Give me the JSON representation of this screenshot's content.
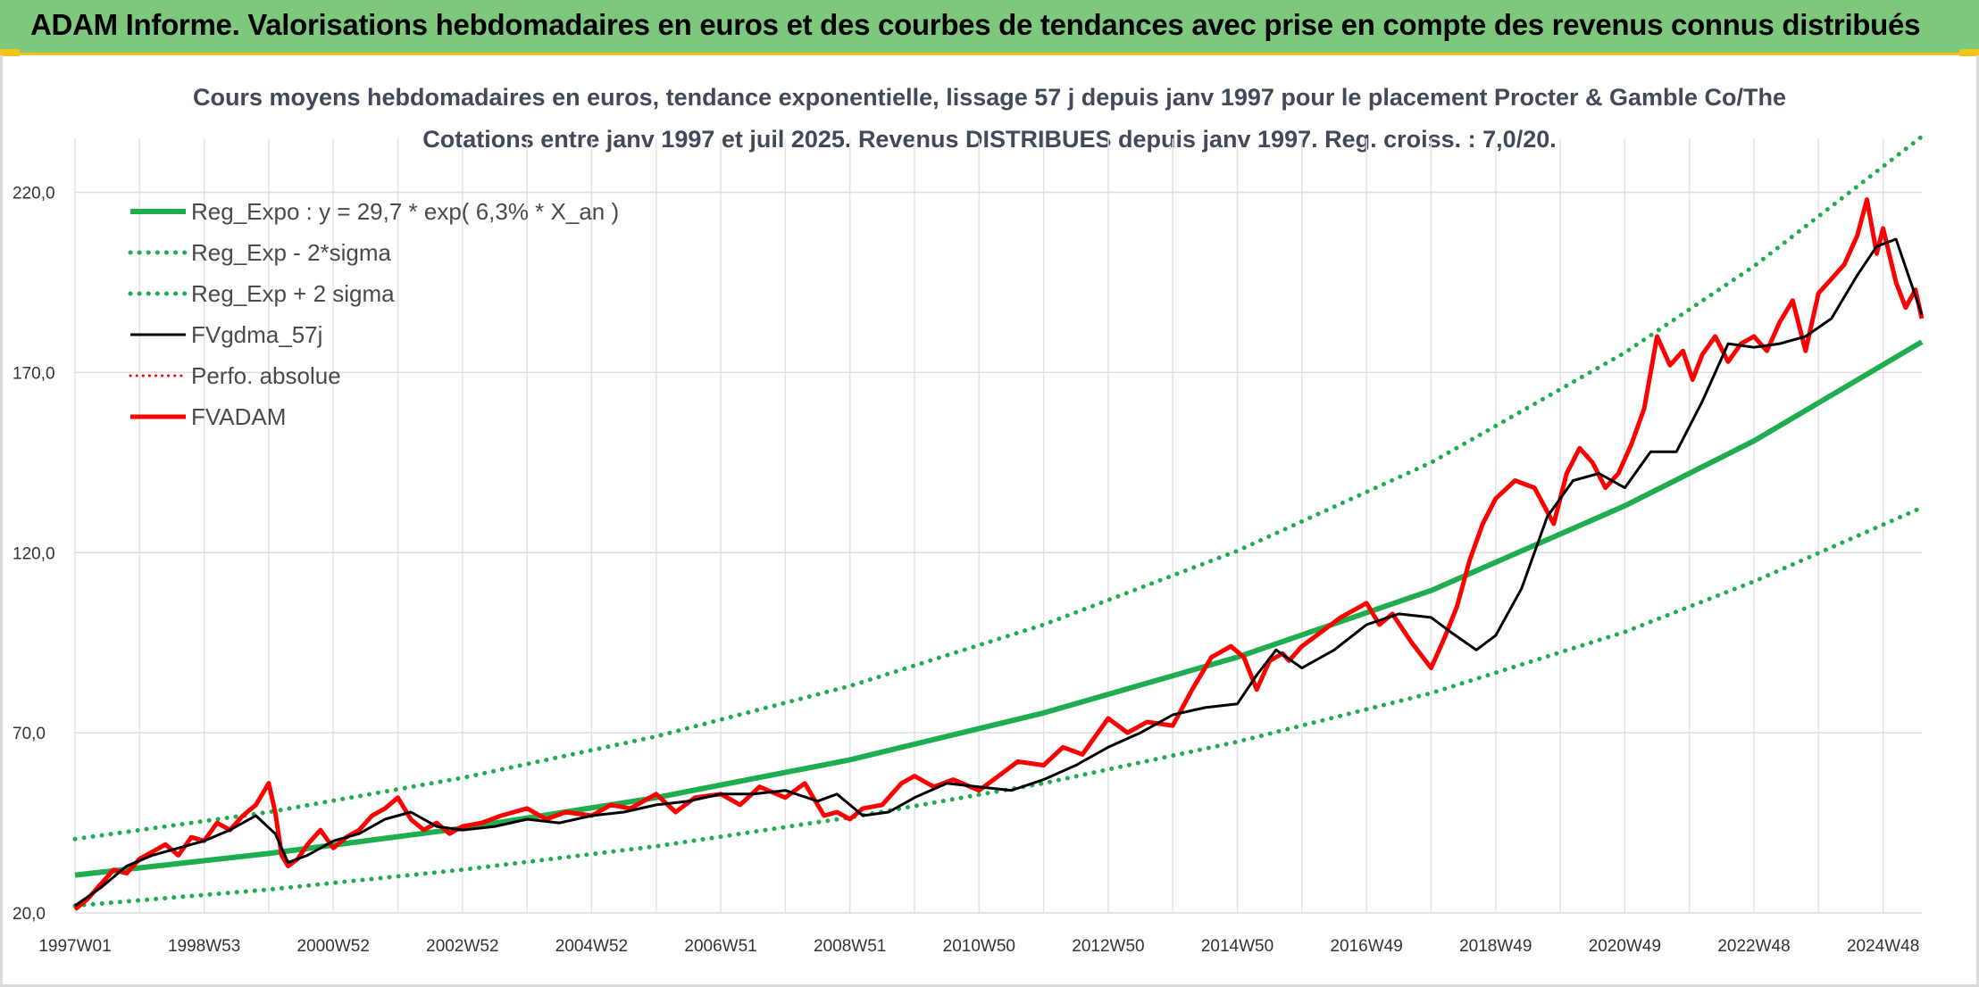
{
  "header": {
    "title": "ADAM Informe. Valorisations hebdomadaires en euros et des courbes de tendances avec prise en compte des revenus connus distribués"
  },
  "chart_data": {
    "type": "line",
    "title": "Cours moyens hebdomadaires en euros, tendance exponentielle, lissage 57 j depuis janv 1997 pour le placement Procter & Gamble Co/The",
    "subtitle": "Cotations entre janv 1997 et juil 2025. Revenus DISTRIBUES depuis janv 1997. Reg. croiss. : 7,0/20.",
    "xlabel": "",
    "ylabel": "",
    "x_tick_labels": [
      "1997W01",
      "1998W53",
      "2000W52",
      "2002W52",
      "2004W52",
      "2006W51",
      "2008W51",
      "2010W50",
      "2012W50",
      "2014W50",
      "2016W49",
      "2018W49",
      "2020W49",
      "2022W48",
      "2024W48"
    ],
    "x_tick_years": [
      1997.0,
      1999.0,
      2001.0,
      2003.0,
      2005.0,
      2007.0,
      2009.0,
      2011.0,
      2013.0,
      2015.0,
      2017.0,
      2019.0,
      2021.0,
      2023.0,
      2025.0
    ],
    "xlim": [
      1997.0,
      2025.6
    ],
    "ylim": [
      20,
      235
    ],
    "y_ticks": [
      20,
      70,
      120,
      170,
      220
    ],
    "y_tick_labels": [
      "20,0",
      "70,0",
      "120,0",
      "170,0",
      "220,0"
    ],
    "grid": true,
    "legend_position": "top-left",
    "colors": {
      "green": "#1fae4f",
      "black": "#000000",
      "red": "#ff0000"
    },
    "series": [
      {
        "name": "Reg_Expo : y = 29,7 * exp( 6,3% *  X_an )",
        "style": "solid-green",
        "x": [
          1997.0,
          2000.0,
          2003.0,
          2006.0,
          2009.0,
          2012.0,
          2015.0,
          2018.0,
          2021.0,
          2023.0,
          2025.6
        ],
        "values": [
          30.5,
          36.5,
          43.5,
          52.0,
          62.5,
          75.5,
          91.0,
          109.5,
          133.0,
          151.0,
          178.5
        ]
      },
      {
        "name": "Reg_Exp - 2*sigma",
        "style": "dotted-green",
        "x": [
          1997.0,
          2000.0,
          2003.0,
          2006.0,
          2009.0,
          2012.0,
          2015.0,
          2018.0,
          2021.0,
          2023.0,
          2025.6
        ],
        "values": [
          22.0,
          26.5,
          32.0,
          38.5,
          46.5,
          56.0,
          67.5,
          81.0,
          98.0,
          112.0,
          132.5
        ]
      },
      {
        "name": "Reg_Exp + 2 sigma",
        "style": "dotted-green",
        "x": [
          1997.0,
          2000.0,
          2003.0,
          2006.0,
          2009.0,
          2012.0,
          2015.0,
          2018.0,
          2021.0,
          2023.0,
          2025.6
        ],
        "values": [
          40.5,
          48.0,
          57.5,
          69.0,
          83.0,
          100.0,
          120.5,
          145.0,
          175.5,
          199.5,
          235.5
        ]
      },
      {
        "name": "FVgdma_57j",
        "style": "solid-black",
        "x": [
          1997.0,
          1997.4,
          1997.8,
          1998.2,
          1998.6,
          1999.0,
          1999.4,
          1999.8,
          2000.1,
          2000.3,
          2000.6,
          2001.0,
          2001.4,
          2001.8,
          2002.2,
          2002.6,
          2003.0,
          2003.5,
          2004.0,
          2004.5,
          2005.0,
          2005.5,
          2006.0,
          2006.5,
          2007.0,
          2007.5,
          2008.0,
          2008.5,
          2008.8,
          2009.2,
          2009.6,
          2010.0,
          2010.5,
          2011.0,
          2011.5,
          2012.0,
          2012.5,
          2013.0,
          2013.5,
          2014.0,
          2014.5,
          2015.0,
          2015.3,
          2015.6,
          2016.0,
          2016.5,
          2017.0,
          2017.5,
          2018.0,
          2018.3,
          2018.7,
          2019.0,
          2019.4,
          2019.8,
          2020.2,
          2020.6,
          2021.0,
          2021.4,
          2021.8,
          2022.2,
          2022.6,
          2023.0,
          2023.4,
          2023.8,
          2024.2,
          2024.6,
          2024.9,
          2025.2,
          2025.6
        ],
        "values": [
          22,
          27,
          33,
          36,
          38,
          40,
          43,
          47,
          42,
          34,
          36,
          40,
          42,
          46,
          48,
          44,
          43,
          44,
          46,
          45,
          47,
          48,
          50,
          51,
          53,
          53,
          54,
          51,
          53,
          47,
          48,
          52,
          56,
          55,
          54,
          57,
          61,
          66,
          70,
          75,
          77,
          78,
          86,
          93,
          88,
          93,
          100,
          103,
          102,
          98,
          93,
          97,
          110,
          130,
          140,
          142,
          138,
          148,
          148,
          162,
          178,
          177,
          178,
          180,
          185,
          197,
          205,
          207,
          186
        ]
      },
      {
        "name": "Perfo. absolue",
        "style": "dotted-red",
        "x": [],
        "values": []
      },
      {
        "name": "FVADAM",
        "style": "solid-red",
        "x": [
          1997.0,
          1997.2,
          1997.4,
          1997.6,
          1997.8,
          1998.0,
          1998.2,
          1998.4,
          1998.6,
          1998.8,
          1999.0,
          1999.2,
          1999.4,
          1999.6,
          1999.8,
          2000.0,
          2000.1,
          2000.2,
          2000.3,
          2000.45,
          2000.6,
          2000.8,
          2001.0,
          2001.2,
          2001.4,
          2001.6,
          2001.8,
          2002.0,
          2002.2,
          2002.4,
          2002.6,
          2002.8,
          2003.0,
          2003.3,
          2003.6,
          2004.0,
          2004.3,
          2004.6,
          2005.0,
          2005.3,
          2005.6,
          2006.0,
          2006.3,
          2006.6,
          2007.0,
          2007.3,
          2007.6,
          2008.0,
          2008.3,
          2008.6,
          2008.8,
          2009.0,
          2009.2,
          2009.5,
          2009.8,
          2010.0,
          2010.3,
          2010.6,
          2011.0,
          2011.3,
          2011.6,
          2012.0,
          2012.3,
          2012.6,
          2013.0,
          2013.3,
          2013.6,
          2014.0,
          2014.3,
          2014.6,
          2014.9,
          2015.1,
          2015.3,
          2015.5,
          2015.7,
          2015.8,
          2016.0,
          2016.3,
          2016.6,
          2017.0,
          2017.2,
          2017.4,
          2017.7,
          2018.0,
          2018.2,
          2018.4,
          2018.6,
          2018.8,
          2019.0,
          2019.3,
          2019.6,
          2019.9,
          2020.1,
          2020.3,
          2020.5,
          2020.7,
          2020.9,
          2021.1,
          2021.3,
          2021.5,
          2021.7,
          2021.9,
          2022.05,
          2022.2,
          2022.4,
          2022.6,
          2022.8,
          2023.0,
          2023.2,
          2023.4,
          2023.6,
          2023.8,
          2024.0,
          2024.2,
          2024.4,
          2024.6,
          2024.75,
          2024.9,
          2025.0,
          2025.2,
          2025.35,
          2025.5,
          2025.6
        ],
        "values": [
          21,
          24,
          28,
          32,
          31,
          35,
          37,
          39,
          36,
          41,
          40,
          45,
          43,
          47,
          50,
          56,
          48,
          36,
          33,
          35,
          39,
          43,
          38,
          41,
          43,
          47,
          49,
          52,
          46,
          43,
          45,
          42,
          44,
          45,
          47,
          49,
          46,
          48,
          47,
          50,
          49,
          53,
          48,
          52,
          53,
          50,
          55,
          52,
          56,
          47,
          48,
          46,
          49,
          50,
          56,
          58,
          55,
          57,
          54,
          58,
          62,
          61,
          66,
          64,
          74,
          70,
          73,
          72,
          82,
          91,
          94,
          91,
          82,
          90,
          92,
          90,
          94,
          98,
          102,
          106,
          100,
          103,
          95,
          88,
          96,
          105,
          118,
          128,
          135,
          140,
          138,
          128,
          142,
          149,
          145,
          138,
          142,
          150,
          160,
          180,
          172,
          176,
          168,
          175,
          180,
          173,
          178,
          180,
          176,
          184,
          190,
          176,
          192,
          196,
          200,
          208,
          218,
          203,
          210,
          195,
          188,
          193,
          185
        ]
      }
    ]
  }
}
